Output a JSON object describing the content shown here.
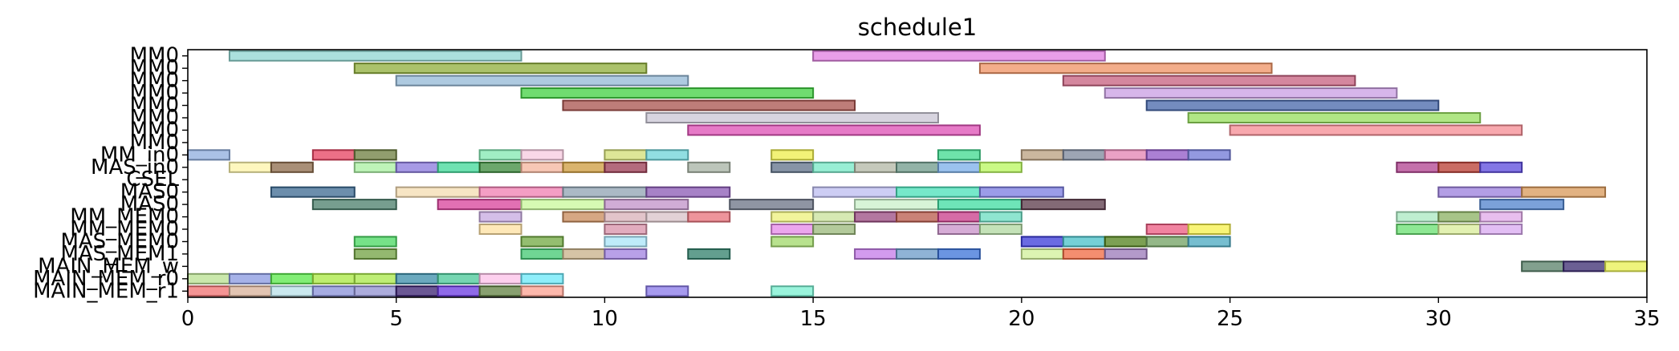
{
  "chart_data": {
    "type": "gantt",
    "title": "schedule1",
    "xlabel": "",
    "ylabel": "",
    "xlim": [
      0,
      35
    ],
    "x_ticks": [
      0,
      5,
      10,
      15,
      20,
      25,
      30,
      35
    ],
    "grid": false,
    "legend": "none",
    "rows": [
      "MM0",
      "MM0",
      "MM0",
      "MM0",
      "MM0",
      "MM0",
      "MM0",
      "MM0",
      "MM_in0",
      "MAS_in0",
      "CSEL",
      "MAS0",
      "MAS0",
      "MM_MEM0",
      "MM_MEM0",
      "MAS_MEM0",
      "MAS_MEM1",
      "MAIN_MEM_w",
      "MAIN_MEM_r0",
      "MAIN_MEM_r1"
    ],
    "tasks": [
      {
        "row": 0,
        "start": 1,
        "end": 8,
        "color": "#8fd6d1"
      },
      {
        "row": 0,
        "start": 15,
        "end": 22,
        "color": "#e07ee0"
      },
      {
        "row": 1,
        "start": 4,
        "end": 11,
        "color": "#8fae3a"
      },
      {
        "row": 1,
        "start": 19,
        "end": 26,
        "color": "#ef9263"
      },
      {
        "row": 2,
        "start": 5,
        "end": 12,
        "color": "#93b8d6"
      },
      {
        "row": 2,
        "start": 21,
        "end": 28,
        "color": "#c55f7d"
      },
      {
        "row": 3,
        "start": 8,
        "end": 15,
        "color": "#40d040"
      },
      {
        "row": 3,
        "start": 22,
        "end": 29,
        "color": "#c99ee3"
      },
      {
        "row": 4,
        "start": 9,
        "end": 16,
        "color": "#a8524c"
      },
      {
        "row": 4,
        "start": 23,
        "end": 30,
        "color": "#4566aa"
      },
      {
        "row": 5,
        "start": 11,
        "end": 18,
        "color": "#c9c6d4"
      },
      {
        "row": 5,
        "start": 24,
        "end": 31,
        "color": "#96de5c"
      },
      {
        "row": 6,
        "start": 12,
        "end": 19,
        "color": "#de4eb4"
      },
      {
        "row": 6,
        "start": 25,
        "end": 32,
        "color": "#f58b93"
      },
      {
        "row": 8,
        "start": 0,
        "end": 1,
        "color": "#8eacde"
      },
      {
        "row": 8,
        "start": 3,
        "end": 4,
        "color": "#e5405f"
      },
      {
        "row": 8,
        "start": 4,
        "end": 5,
        "color": "#6c7d3e"
      },
      {
        "row": 8,
        "start": 7,
        "end": 8,
        "color": "#80e8b0"
      },
      {
        "row": 8,
        "start": 8,
        "end": 9,
        "color": "#f7c9df"
      },
      {
        "row": 8,
        "start": 10,
        "end": 11,
        "color": "#d2dd74"
      },
      {
        "row": 8,
        "start": 11,
        "end": 12,
        "color": "#6cd3d8"
      },
      {
        "row": 8,
        "start": 14,
        "end": 15,
        "color": "#eded4a"
      },
      {
        "row": 8,
        "start": 18,
        "end": 19,
        "color": "#3ed98d"
      },
      {
        "row": 8,
        "start": 20,
        "end": 21,
        "color": "#b99f7e"
      },
      {
        "row": 8,
        "start": 21,
        "end": 22,
        "color": "#7c879b"
      },
      {
        "row": 8,
        "start": 22,
        "end": 23,
        "color": "#e382b2"
      },
      {
        "row": 8,
        "start": 23,
        "end": 24,
        "color": "#8f56c5"
      },
      {
        "row": 8,
        "start": 24,
        "end": 25,
        "color": "#6f77d5"
      },
      {
        "row": 9,
        "start": 1,
        "end": 2,
        "color": "#fdf4a8"
      },
      {
        "row": 9,
        "start": 2,
        "end": 3,
        "color": "#8c6a4a"
      },
      {
        "row": 9,
        "start": 4,
        "end": 5,
        "color": "#a8f0a0"
      },
      {
        "row": 9,
        "start": 5,
        "end": 6,
        "color": "#8a78dc"
      },
      {
        "row": 9,
        "start": 6,
        "end": 7,
        "color": "#3fd898"
      },
      {
        "row": 9,
        "start": 7,
        "end": 8,
        "color": "#3b8a3b"
      },
      {
        "row": 9,
        "start": 8,
        "end": 9,
        "color": "#f4b49c"
      },
      {
        "row": 9,
        "start": 9,
        "end": 10,
        "color": "#cd9b3c"
      },
      {
        "row": 9,
        "start": 10,
        "end": 11,
        "color": "#9a3a52"
      },
      {
        "row": 9,
        "start": 12,
        "end": 13,
        "color": "#a6b2a3"
      },
      {
        "row": 9,
        "start": 14,
        "end": 15,
        "color": "#5f7088"
      },
      {
        "row": 9,
        "start": 15,
        "end": 16,
        "color": "#76e8c6"
      },
      {
        "row": 9,
        "start": 16,
        "end": 17,
        "color": "#b2b7a4"
      },
      {
        "row": 9,
        "start": 17,
        "end": 18,
        "color": "#6e9a8a"
      },
      {
        "row": 9,
        "start": 18,
        "end": 19,
        "color": "#7aaee8"
      },
      {
        "row": 9,
        "start": 19,
        "end": 20,
        "color": "#b8f75c"
      },
      {
        "row": 9,
        "start": 29,
        "end": 30,
        "color": "#b0408f"
      },
      {
        "row": 9,
        "start": 30,
        "end": 31,
        "color": "#b83b30"
      },
      {
        "row": 9,
        "start": 31,
        "end": 32,
        "color": "#5a48dc"
      },
      {
        "row": 11,
        "start": 2,
        "end": 4,
        "color": "#3b6890"
      },
      {
        "row": 11,
        "start": 5,
        "end": 7,
        "color": "#f4dcb0"
      },
      {
        "row": 11,
        "start": 7,
        "end": 9,
        "color": "#f07eb0"
      },
      {
        "row": 11,
        "start": 9,
        "end": 11,
        "color": "#8fa2b2"
      },
      {
        "row": 11,
        "start": 11,
        "end": 13,
        "color": "#8a58b4"
      },
      {
        "row": 11,
        "start": 15,
        "end": 17,
        "color": "#bcbcf0"
      },
      {
        "row": 11,
        "start": 17,
        "end": 19,
        "color": "#48e0b8"
      },
      {
        "row": 11,
        "start": 19,
        "end": 21,
        "color": "#7a7be0"
      },
      {
        "row": 11,
        "start": 30,
        "end": 32,
        "color": "#9a7ddc"
      },
      {
        "row": 11,
        "start": 32,
        "end": 34,
        "color": "#d89858"
      },
      {
        "row": 12,
        "start": 3,
        "end": 5,
        "color": "#4a7d6a"
      },
      {
        "row": 12,
        "start": 6,
        "end": 8,
        "color": "#d8409a"
      },
      {
        "row": 12,
        "start": 8,
        "end": 10,
        "color": "#c8f89a"
      },
      {
        "row": 12,
        "start": 10,
        "end": 12,
        "color": "#c090c8"
      },
      {
        "row": 12,
        "start": 13,
        "end": 15,
        "color": "#6a7284"
      },
      {
        "row": 12,
        "start": 16,
        "end": 18,
        "color": "#c9f0c9"
      },
      {
        "row": 12,
        "start": 18,
        "end": 20,
        "color": "#3edca0"
      },
      {
        "row": 12,
        "start": 20,
        "end": 22,
        "color": "#5a3848"
      },
      {
        "row": 12,
        "start": 31,
        "end": 33,
        "color": "#4f82cc"
      },
      {
        "row": 13,
        "start": 7,
        "end": 8,
        "color": "#c6a8e0"
      },
      {
        "row": 13,
        "start": 9,
        "end": 10,
        "color": "#c88a5a"
      },
      {
        "row": 13,
        "start": 10,
        "end": 11,
        "color": "#d8b0b8"
      },
      {
        "row": 13,
        "start": 11,
        "end": 12,
        "color": "#d8c2c8"
      },
      {
        "row": 13,
        "start": 12,
        "end": 13,
        "color": "#e8707a"
      },
      {
        "row": 13,
        "start": 14,
        "end": 15,
        "color": "#eef07a"
      },
      {
        "row": 13,
        "start": 15,
        "end": 16,
        "color": "#c8e29a"
      },
      {
        "row": 13,
        "start": 16,
        "end": 17,
        "color": "#9a4a80"
      },
      {
        "row": 13,
        "start": 17,
        "end": 18,
        "color": "#b8584a"
      },
      {
        "row": 13,
        "start": 18,
        "end": 19,
        "color": "#c83a88"
      },
      {
        "row": 13,
        "start": 19,
        "end": 20,
        "color": "#6adcc0"
      },
      {
        "row": 13,
        "start": 29,
        "end": 30,
        "color": "#a8e8c0"
      },
      {
        "row": 13,
        "start": 30,
        "end": 31,
        "color": "#8ab060"
      },
      {
        "row": 13,
        "start": 31,
        "end": 32,
        "color": "#e0a8e8"
      },
      {
        "row": 14,
        "start": 7,
        "end": 8,
        "color": "#fde0a0"
      },
      {
        "row": 14,
        "start": 10,
        "end": 11,
        "color": "#d890a8"
      },
      {
        "row": 14,
        "start": 14,
        "end": 15,
        "color": "#e688e8"
      },
      {
        "row": 14,
        "start": 15,
        "end": 16,
        "color": "#9ab87a"
      },
      {
        "row": 14,
        "start": 18,
        "end": 19,
        "color": "#c890c8"
      },
      {
        "row": 14,
        "start": 19,
        "end": 20,
        "color": "#b0d8a0"
      },
      {
        "row": 14,
        "start": 23,
        "end": 24,
        "color": "#ec5a80"
      },
      {
        "row": 14,
        "start": 24,
        "end": 25,
        "color": "#f6f04a"
      },
      {
        "row": 14,
        "start": 29,
        "end": 30,
        "color": "#68e070"
      },
      {
        "row": 14,
        "start": 30,
        "end": 31,
        "color": "#d8ec98"
      },
      {
        "row": 14,
        "start": 31,
        "end": 32,
        "color": "#d8a8f0"
      },
      {
        "row": 15,
        "start": 4,
        "end": 5,
        "color": "#48d860"
      },
      {
        "row": 15,
        "start": 8,
        "end": 9,
        "color": "#70a840"
      },
      {
        "row": 15,
        "start": 10,
        "end": 11,
        "color": "#a8e4f8"
      },
      {
        "row": 15,
        "start": 14,
        "end": 15,
        "color": "#a0d868"
      },
      {
        "row": 15,
        "start": 20,
        "end": 21,
        "color": "#3a3ad8"
      },
      {
        "row": 15,
        "start": 21,
        "end": 22,
        "color": "#48c0c8"
      },
      {
        "row": 15,
        "start": 22,
        "end": 23,
        "color": "#50801a"
      },
      {
        "row": 15,
        "start": 23,
        "end": 24,
        "color": "#70a060"
      },
      {
        "row": 15,
        "start": 24,
        "end": 25,
        "color": "#48a8c0"
      },
      {
        "row": 16,
        "start": 4,
        "end": 5,
        "color": "#70a040"
      },
      {
        "row": 16,
        "start": 8,
        "end": 9,
        "color": "#40c870"
      },
      {
        "row": 16,
        "start": 9,
        "end": 10,
        "color": "#c8b088"
      },
      {
        "row": 16,
        "start": 10,
        "end": 11,
        "color": "#a080e0"
      },
      {
        "row": 16,
        "start": 12,
        "end": 13,
        "color": "#2f7f6a"
      },
      {
        "row": 16,
        "start": 16,
        "end": 17,
        "color": "#c47ae8"
      },
      {
        "row": 16,
        "start": 17,
        "end": 18,
        "color": "#6a9ac8"
      },
      {
        "row": 16,
        "start": 18,
        "end": 19,
        "color": "#3a72d8"
      },
      {
        "row": 16,
        "start": 20,
        "end": 21,
        "color": "#d0f098"
      },
      {
        "row": 16,
        "start": 21,
        "end": 22,
        "color": "#f06840"
      },
      {
        "row": 16,
        "start": 22,
        "end": 23,
        "color": "#9a78b8"
      },
      {
        "row": 17,
        "start": 32,
        "end": 33,
        "color": "#588068"
      },
      {
        "row": 17,
        "start": 33,
        "end": 34,
        "color": "#3a2a70"
      },
      {
        "row": 17,
        "start": 34,
        "end": 35,
        "color": "#e8f050"
      },
      {
        "row": 18,
        "start": 0,
        "end": 1,
        "color": "#b8e090"
      },
      {
        "row": 18,
        "start": 1,
        "end": 2,
        "color": "#8898e0"
      },
      {
        "row": 18,
        "start": 2,
        "end": 3,
        "color": "#58e848"
      },
      {
        "row": 18,
        "start": 3,
        "end": 4,
        "color": "#a8e840"
      },
      {
        "row": 18,
        "start": 4,
        "end": 5,
        "color": "#a8e848"
      },
      {
        "row": 18,
        "start": 5,
        "end": 6,
        "color": "#3a8ca8"
      },
      {
        "row": 18,
        "start": 6,
        "end": 7,
        "color": "#48c898"
      },
      {
        "row": 18,
        "start": 7,
        "end": 8,
        "color": "#fcc0e8"
      },
      {
        "row": 18,
        "start": 8,
        "end": 9,
        "color": "#6ae8f8"
      },
      {
        "row": 19,
        "start": 0,
        "end": 1,
        "color": "#f07070"
      },
      {
        "row": 19,
        "start": 1,
        "end": 2,
        "color": "#d8b098"
      },
      {
        "row": 19,
        "start": 2,
        "end": 3,
        "color": "#b8e0e8"
      },
      {
        "row": 19,
        "start": 3,
        "end": 4,
        "color": "#8890d8"
      },
      {
        "row": 19,
        "start": 4,
        "end": 5,
        "color": "#9090d0"
      },
      {
        "row": 19,
        "start": 5,
        "end": 6,
        "color": "#3a2070"
      },
      {
        "row": 19,
        "start": 6,
        "end": 7,
        "color": "#6a38e0"
      },
      {
        "row": 19,
        "start": 7,
        "end": 8,
        "color": "#608040"
      },
      {
        "row": 19,
        "start": 8,
        "end": 9,
        "color": "#fca090"
      },
      {
        "row": 19,
        "start": 11,
        "end": 12,
        "color": "#8878e8"
      },
      {
        "row": 19,
        "start": 14,
        "end": 15,
        "color": "#78f0d0"
      }
    ]
  }
}
